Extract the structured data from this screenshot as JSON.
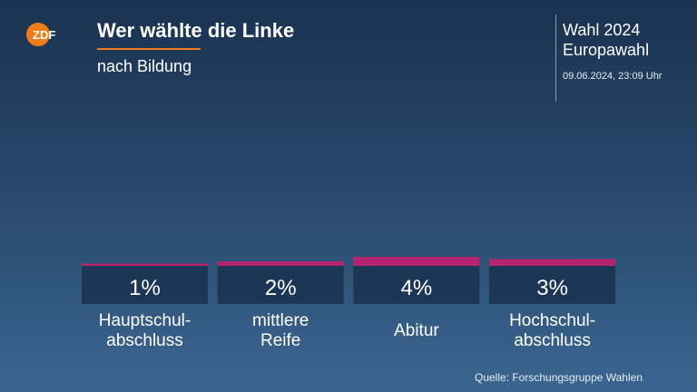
{
  "header": {
    "logo_text": "ZDF",
    "title": "Wer wählte die Linke",
    "subtitle": "nach Bildung",
    "election_line1": "Wahl 2024",
    "election_line2": "Europawahl",
    "timestamp": "09.06.2024, 23:09 Uhr"
  },
  "colors": {
    "accent_orange": "#f07d19",
    "bar_magenta": "#b5256f",
    "value_box": "#1c3756"
  },
  "chart_data": {
    "type": "bar",
    "title": "Wer wählte die Linke",
    "subtitle": "nach Bildung",
    "categories": [
      "Hauptschul-\nabschluss",
      "mittlere\nReife",
      "Abitur",
      "Hochschul-\nabschluss"
    ],
    "values": [
      1,
      2,
      4,
      3
    ],
    "value_labels": [
      "1%",
      "2%",
      "4%",
      "3%"
    ],
    "unit": "%",
    "ylim": [
      0,
      4
    ]
  },
  "footer": {
    "source": "Quelle: Forschungsgruppe Wahlen"
  }
}
